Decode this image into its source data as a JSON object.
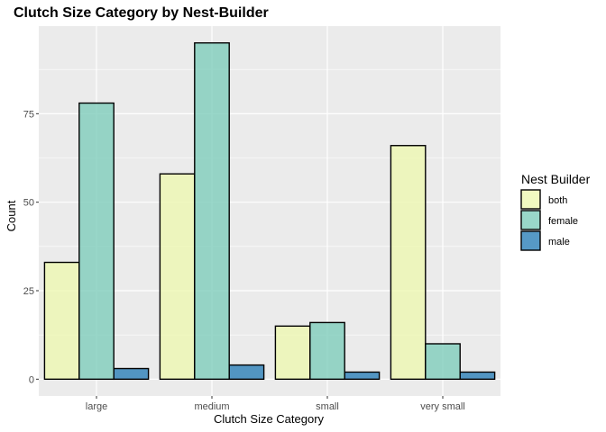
{
  "chart_data": {
    "type": "bar",
    "title": "Clutch Size Category by Nest-Builder",
    "xlabel": "Clutch Size Category",
    "ylabel": "Count",
    "categories": [
      "large",
      "medium",
      "small",
      "very small"
    ],
    "series": [
      {
        "name": "both",
        "values": [
          33,
          58,
          15,
          66
        ],
        "color": "#EDF8B1"
      },
      {
        "name": "female",
        "values": [
          78,
          95,
          16,
          10
        ],
        "color": "#7FCDBB"
      },
      {
        "name": "male",
        "values": [
          3,
          4,
          2,
          2
        ],
        "color": "#2C7FB8"
      }
    ],
    "yticks": [
      0,
      25,
      50,
      75
    ],
    "ylim": [
      -4.75,
      99.75
    ],
    "grid": true,
    "legend": {
      "title": "Nest Builder",
      "position": "right"
    },
    "panel_background": "#EBEBEB"
  }
}
